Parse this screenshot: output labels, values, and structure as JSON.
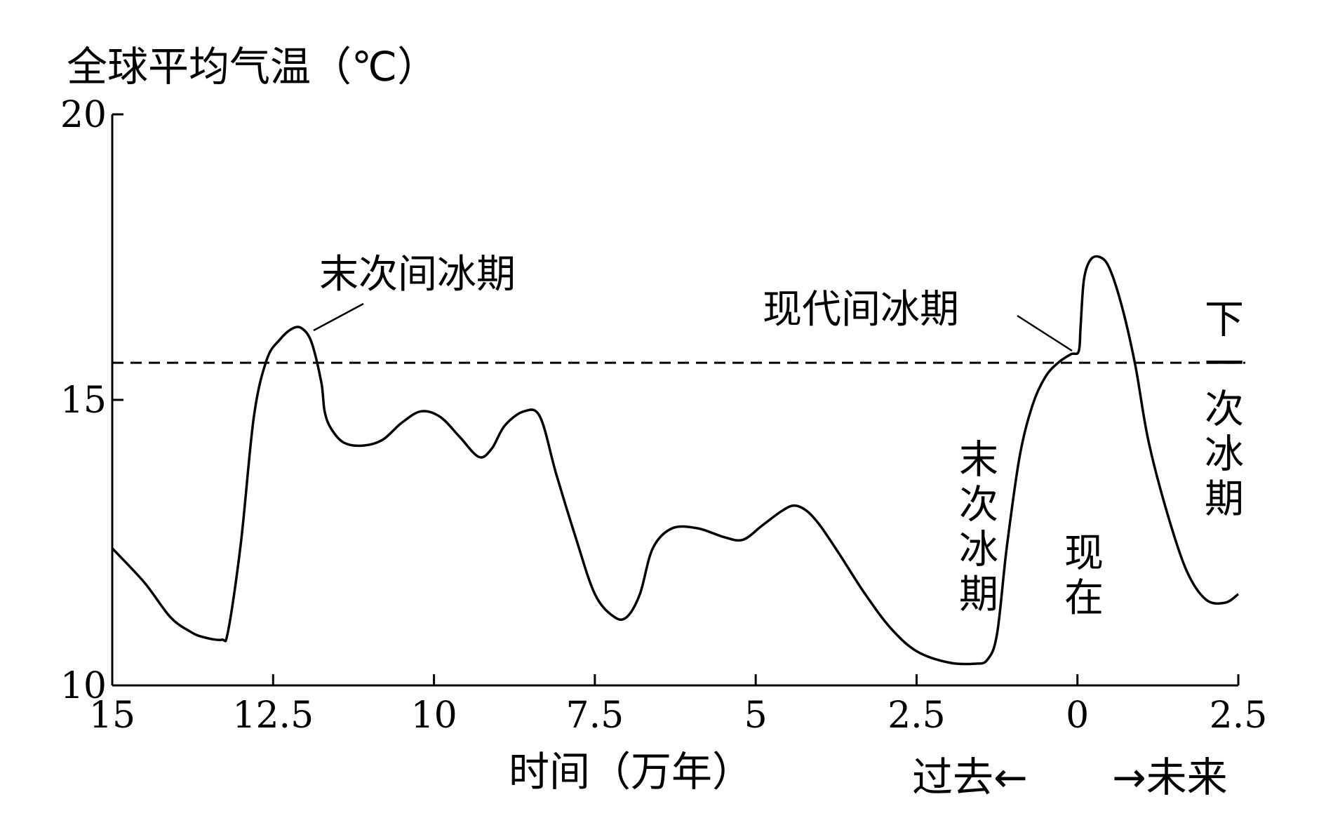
{
  "chart_data": {
    "type": "line",
    "ylabel": "全球平均气温（℃）",
    "xlabel": "时间（万年）",
    "ylim": [
      10,
      20
    ],
    "yticks": [
      10,
      15,
      20
    ],
    "xlim": [
      -15,
      2.5
    ],
    "xticks": [
      {
        "value": -15,
        "label": "15"
      },
      {
        "value": -12.5,
        "label": "12.5"
      },
      {
        "value": -10,
        "label": "10"
      },
      {
        "value": -7.5,
        "label": "7.5"
      },
      {
        "value": -5,
        "label": "5"
      },
      {
        "value": -2.5,
        "label": "2.5"
      },
      {
        "value": 0,
        "label": "0"
      },
      {
        "value": 2.5,
        "label": "2.5"
      }
    ],
    "grid": false,
    "series": [
      {
        "x": [
          -15,
          -14.5,
          -14.1,
          -13.8,
          -13.6,
          -13.3,
          -13.2,
          -13.0,
          -12.8,
          -12.6,
          -12.4,
          -12.2,
          -12.05,
          -11.9,
          -11.75,
          -11.7,
          -11.6,
          -11.4,
          -11.1,
          -10.8,
          -10.5,
          -10.2,
          -9.9,
          -9.6,
          -9.3,
          -9.1,
          -8.9,
          -8.6,
          -8.35,
          -8.1,
          -7.8,
          -7.5,
          -7.2,
          -7.0,
          -6.8,
          -6.6,
          -6.3,
          -5.9,
          -5.5,
          -5.2,
          -4.9,
          -4.6,
          -4.4,
          -4.2,
          -4.0,
          -3.7,
          -3.3,
          -2.9,
          -2.5,
          -2.0,
          -1.6,
          -1.4,
          -1.25,
          -1.1,
          -0.9,
          -0.7,
          -0.5,
          -0.3,
          -0.1,
          0.02,
          0.05,
          0.1,
          0.2,
          0.35,
          0.5,
          0.7,
          0.9,
          1.1,
          1.4,
          1.7,
          2.0,
          2.3,
          2.5
        ],
        "y": [
          12.4,
          11.8,
          11.2,
          10.95,
          10.85,
          10.8,
          10.95,
          12.5,
          14.7,
          15.7,
          16.05,
          16.25,
          16.25,
          16.0,
          15.3,
          14.8,
          14.5,
          14.25,
          14.2,
          14.3,
          14.6,
          14.8,
          14.7,
          14.35,
          14.0,
          14.15,
          14.55,
          14.8,
          14.7,
          13.7,
          12.6,
          11.6,
          11.2,
          11.2,
          11.6,
          12.4,
          12.75,
          12.75,
          12.6,
          12.55,
          12.8,
          13.05,
          13.15,
          13.05,
          12.8,
          12.3,
          11.6,
          11.0,
          10.6,
          10.4,
          10.38,
          10.45,
          10.9,
          12.4,
          14.0,
          14.9,
          15.4,
          15.65,
          15.8,
          15.85,
          16.3,
          17.1,
          17.45,
          17.5,
          17.3,
          16.6,
          15.6,
          14.3,
          13.0,
          12.0,
          11.5,
          11.45,
          11.6
        ]
      }
    ],
    "reference_line": {
      "y": 15.65,
      "style": "dashed"
    },
    "annotations": [
      {
        "text": "末次间冰期"
      },
      {
        "text": "现代间冰期"
      },
      {
        "text": "末次冰期"
      },
      {
        "text": "现在"
      },
      {
        "text": "下一次冰期"
      }
    ],
    "direction_labels": {
      "past": "过去←",
      "future": "→未来"
    }
  },
  "colors": {
    "line": "#000000",
    "background": "#ffffff"
  }
}
